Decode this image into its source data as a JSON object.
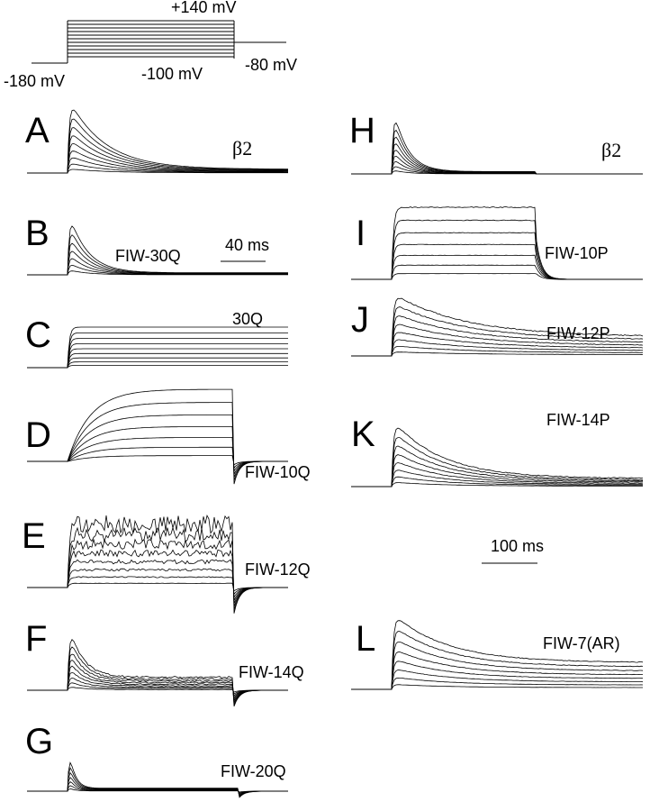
{
  "protocol": {
    "top_label": "+140 mV",
    "start_label": "-180 mV",
    "bottom_label": "-100 mV",
    "end_label": "-80 mV"
  },
  "panels": [
    {
      "letter": "A",
      "label": "β2"
    },
    {
      "letter": "B",
      "label": "FIW-30Q"
    },
    {
      "letter": "C",
      "label": "30Q"
    },
    {
      "letter": "D",
      "label": "FIW-10Q"
    },
    {
      "letter": "E",
      "label": "FIW-12Q"
    },
    {
      "letter": "F",
      "label": "FIW-14Q"
    },
    {
      "letter": "G",
      "label": "FIW-20Q"
    },
    {
      "letter": "H",
      "label": "β2"
    },
    {
      "letter": "I",
      "label": "FIW-10P"
    },
    {
      "letter": "J",
      "label": "FIW-12P"
    },
    {
      "letter": "K",
      "label": "FIW-14P"
    },
    {
      "letter": "L",
      "label": "FIW-7(AR)"
    }
  ],
  "scale_bars": [
    "40 ms",
    "100 ms"
  ]
}
